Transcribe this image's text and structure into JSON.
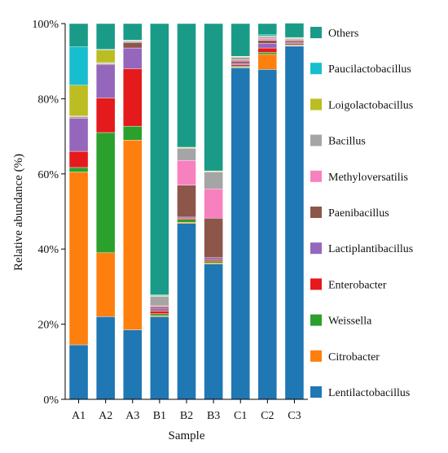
{
  "chart_data": {
    "type": "bar",
    "stacked": true,
    "xlabel": "Sample",
    "ylabel": "Relative abundance (%)",
    "ylim": [
      0,
      100
    ],
    "yticks": [
      "0%",
      "20%",
      "40%",
      "60%",
      "80%",
      "100%"
    ],
    "categories": [
      "A1",
      "A2",
      "A3",
      "B1",
      "B2",
      "B3",
      "C1",
      "C2",
      "C3"
    ],
    "legend_position": "right",
    "series": [
      {
        "name": "Lentilactobacillus",
        "color": "#1f77b4",
        "values": [
          14.5,
          22.0,
          18.5,
          22.0,
          46.8,
          36.0,
          88.2,
          87.8,
          94.0
        ]
      },
      {
        "name": "Citrobacter",
        "color": "#ff7f0e",
        "values": [
          46.0,
          17.0,
          50.5,
          0.3,
          0.3,
          0.3,
          0.2,
          4.0,
          0.1
        ]
      },
      {
        "name": "Weissella",
        "color": "#2ca02c",
        "values": [
          1.2,
          32.0,
          3.7,
          0.5,
          0.8,
          0.5,
          0.3,
          0.5,
          0.2
        ]
      },
      {
        "name": "Enterobacter",
        "color": "#e41a1c",
        "values": [
          4.3,
          9.2,
          15.3,
          0.7,
          0.3,
          0.4,
          0.3,
          1.2,
          0.3
        ]
      },
      {
        "name": "Lactiplantibacillus",
        "color": "#9467bd",
        "values": [
          8.8,
          8.8,
          5.5,
          0.6,
          0.3,
          0.5,
          0.4,
          1.2,
          0.3
        ]
      },
      {
        "name": "Paenibacillus",
        "color": "#8c564b",
        "values": [
          0.3,
          0.3,
          1.5,
          0.5,
          8.5,
          10.5,
          0.6,
          0.8,
          0.5
        ]
      },
      {
        "name": "Methyloversatilis",
        "color": "#f781bf",
        "values": [
          0.1,
          0.1,
          0.1,
          0.3,
          6.6,
          7.8,
          0.3,
          0.5,
          0.3
        ]
      },
      {
        "name": "Bacillus",
        "color": "#a5a5a5",
        "values": [
          0.2,
          0.2,
          0.3,
          2.5,
          3.2,
          4.5,
          0.7,
          0.5,
          0.3
        ]
      },
      {
        "name": "Loigolactobacillus",
        "color": "#bcbd22",
        "values": [
          8.2,
          3.4,
          0.1,
          0.2,
          0.2,
          0.2,
          0.2,
          0.2,
          0.2
        ]
      },
      {
        "name": "Paucilactobacillus",
        "color": "#17becf",
        "values": [
          10.2,
          0.2,
          0.1,
          0.2,
          0.1,
          0.1,
          0.1,
          0.3,
          0.1
        ]
      },
      {
        "name": "Others",
        "color": "#1a9b88",
        "values": [
          6.2,
          6.8,
          4.4,
          72.2,
          32.9,
          39.2,
          8.7,
          3.0,
          3.8
        ]
      }
    ]
  }
}
